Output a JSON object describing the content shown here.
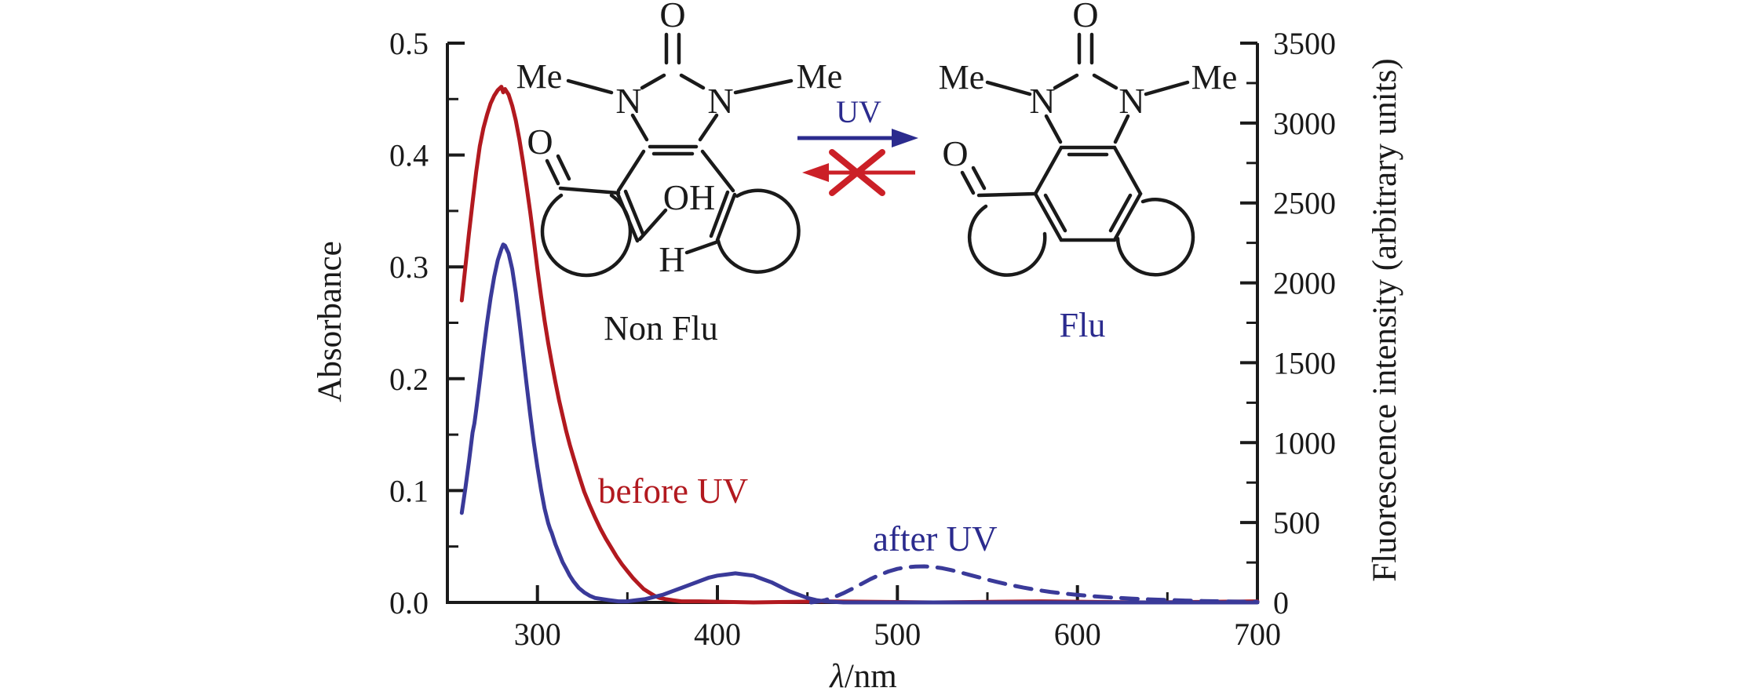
{
  "figure": {
    "colors": {
      "red": "#b2191f",
      "blue": "#3a3a99",
      "navy": "#2b2b8e",
      "arrow_red": "#cb2027",
      "ink": "#1a1a1a",
      "background": "#ffffff"
    },
    "axes": {
      "x": {
        "label_lambda": "λ",
        "label_unit": "/nm",
        "min": 250,
        "max": 700,
        "major_ticks": [
          300,
          400,
          500,
          600,
          700
        ],
        "tick_labels": [
          "300",
          "400",
          "500",
          "600",
          "700"
        ],
        "minor_ticks": [
          350,
          450,
          550,
          650
        ]
      },
      "y_left": {
        "label": "Absorbance",
        "min": 0,
        "max": 0.5,
        "major_ticks": [
          0,
          0.1,
          0.2,
          0.3,
          0.4,
          0.5
        ],
        "tick_labels": [
          "0.0",
          "0.1",
          "0.2",
          "0.3",
          "0.4",
          "0.5"
        ],
        "minor_ticks": [
          0.05,
          0.15,
          0.25,
          0.35,
          0.45
        ]
      },
      "y_right": {
        "label": "Fluorescence intensity (arbitrary units)",
        "min": 0,
        "max": 3500,
        "major_ticks": [
          0,
          500,
          1000,
          1500,
          2000,
          2500,
          3000,
          3500
        ],
        "tick_labels": [
          "0",
          "500",
          "1000",
          "1500",
          "2000",
          "2500",
          "3000",
          "3500"
        ],
        "minor_ticks": [
          250,
          750,
          1250,
          1750,
          2250,
          2750,
          3250
        ]
      }
    },
    "curve_labels": {
      "before_uv": "before UV",
      "after_uv": "after UV"
    },
    "scheme": {
      "uv_label": "UV",
      "non_flu": {
        "caption": "Non Flu",
        "o_top": "O",
        "me_left": "Me",
        "n_left": "N",
        "n_right": "N",
        "me_right": "Me",
        "o_ketone": "O",
        "oh": "OH",
        "h": "H"
      },
      "flu": {
        "caption": "Flu",
        "o_top": "O",
        "me_left": "Me",
        "n_left": "N",
        "n_right": "N",
        "me_right": "Me",
        "o_ketone": "O"
      }
    }
  },
  "chart_data": {
    "type": "line",
    "title": "",
    "xlabel": "λ/nm",
    "ylabel_left": "Absorbance",
    "ylabel_right": "Fluorescence intensity (arbitrary units)",
    "x_range": [
      250,
      700
    ],
    "y_left_range": [
      0,
      0.5
    ],
    "y_right_range": [
      0,
      3500
    ],
    "grid": false,
    "legend": "inline text annotations",
    "series": [
      {
        "name": "before UV",
        "quantity": "absorbance",
        "axis": "left",
        "color": "#b2191f",
        "style": "solid",
        "points": [
          [
            258,
            0.27
          ],
          [
            260,
            0.3
          ],
          [
            262,
            0.33
          ],
          [
            264,
            0.358
          ],
          [
            266,
            0.385
          ],
          [
            268,
            0.408
          ],
          [
            270,
            0.424
          ],
          [
            272,
            0.436
          ],
          [
            274,
            0.446
          ],
          [
            276,
            0.453
          ],
          [
            278,
            0.458
          ],
          [
            280,
            0.461
          ],
          [
            281,
            0.456
          ],
          [
            282,
            0.459
          ],
          [
            284,
            0.454
          ],
          [
            286,
            0.444
          ],
          [
            288,
            0.431
          ],
          [
            290,
            0.414
          ],
          [
            292,
            0.394
          ],
          [
            294,
            0.372
          ],
          [
            296,
            0.349
          ],
          [
            298,
            0.324
          ],
          [
            300,
            0.298
          ],
          [
            302,
            0.274
          ],
          [
            304,
            0.252
          ],
          [
            306,
            0.232
          ],
          [
            308,
            0.214
          ],
          [
            310,
            0.197
          ],
          [
            312,
            0.181
          ],
          [
            314,
            0.167
          ],
          [
            316,
            0.153
          ],
          [
            318,
            0.141
          ],
          [
            320,
            0.13
          ],
          [
            323,
            0.114
          ],
          [
            326,
            0.099
          ],
          [
            329,
            0.087
          ],
          [
            332,
            0.076
          ],
          [
            335,
            0.066
          ],
          [
            338,
            0.057
          ],
          [
            341,
            0.049
          ],
          [
            344,
            0.041
          ],
          [
            347,
            0.034
          ],
          [
            350,
            0.028
          ],
          [
            353,
            0.022
          ],
          [
            356,
            0.017
          ],
          [
            359,
            0.012
          ],
          [
            362,
            0.009
          ],
          [
            365,
            0.006
          ],
          [
            368,
            0.004
          ],
          [
            371,
            0.003
          ],
          [
            375,
            0.002
          ],
          [
            380,
            0.001
          ],
          [
            390,
            0.001
          ],
          [
            420,
            0.0
          ],
          [
            460,
            0.001
          ],
          [
            520,
            0.0
          ],
          [
            580,
            0.001
          ],
          [
            640,
            0.0
          ],
          [
            700,
            0.001
          ]
        ]
      },
      {
        "name": "after UV",
        "quantity": "absorbance",
        "axis": "left",
        "color": "#3a3a99",
        "style": "solid",
        "points": [
          [
            258,
            0.08
          ],
          [
            260,
            0.102
          ],
          [
            262,
            0.126
          ],
          [
            264,
            0.152
          ],
          [
            265,
            0.16
          ],
          [
            266,
            0.172
          ],
          [
            268,
            0.198
          ],
          [
            270,
            0.225
          ],
          [
            272,
            0.25
          ],
          [
            274,
            0.272
          ],
          [
            276,
            0.291
          ],
          [
            278,
            0.306
          ],
          [
            280,
            0.316
          ],
          [
            281,
            0.32
          ],
          [
            282,
            0.319
          ],
          [
            284,
            0.312
          ],
          [
            286,
            0.298
          ],
          [
            288,
            0.277
          ],
          [
            290,
            0.251
          ],
          [
            292,
            0.223
          ],
          [
            294,
            0.195
          ],
          [
            296,
            0.168
          ],
          [
            298,
            0.143
          ],
          [
            300,
            0.121
          ],
          [
            302,
            0.101
          ],
          [
            304,
            0.084
          ],
          [
            306,
            0.071
          ],
          [
            307,
            0.066
          ],
          [
            308,
            0.062
          ],
          [
            310,
            0.052
          ],
          [
            312,
            0.044
          ],
          [
            314,
            0.036
          ],
          [
            316,
            0.03
          ],
          [
            318,
            0.024
          ],
          [
            320,
            0.019
          ],
          [
            323,
            0.013
          ],
          [
            326,
            0.009
          ],
          [
            329,
            0.006
          ],
          [
            332,
            0.004
          ],
          [
            336,
            0.003
          ],
          [
            340,
            0.002
          ],
          [
            345,
            0.001
          ],
          [
            350,
            0.001
          ],
          [
            355,
            0.002
          ],
          [
            360,
            0.003
          ],
          [
            365,
            0.005
          ],
          [
            370,
            0.007
          ],
          [
            375,
            0.01
          ],
          [
            380,
            0.013
          ],
          [
            385,
            0.016
          ],
          [
            390,
            0.019
          ],
          [
            395,
            0.022
          ],
          [
            400,
            0.024
          ],
          [
            405,
            0.025
          ],
          [
            410,
            0.026
          ],
          [
            415,
            0.025
          ],
          [
            420,
            0.024
          ],
          [
            425,
            0.021
          ],
          [
            430,
            0.018
          ],
          [
            435,
            0.014
          ],
          [
            440,
            0.01
          ],
          [
            445,
            0.007
          ],
          [
            450,
            0.004
          ],
          [
            455,
            0.002
          ],
          [
            460,
            0.001
          ],
          [
            470,
            0.0
          ],
          [
            500,
            0.0
          ],
          [
            560,
            0.0
          ],
          [
            620,
            0.0
          ],
          [
            700,
            0.0
          ]
        ]
      },
      {
        "name": "after UV (fluorescence)",
        "quantity": "fluorescence intensity",
        "axis": "right",
        "color": "#3a3a99",
        "style": "dashed",
        "points": [
          [
            452,
            0
          ],
          [
            456,
            6
          ],
          [
            460,
            15
          ],
          [
            465,
            34
          ],
          [
            470,
            58
          ],
          [
            475,
            86
          ],
          [
            480,
            116
          ],
          [
            485,
            146
          ],
          [
            490,
            172
          ],
          [
            495,
            194
          ],
          [
            500,
            210
          ],
          [
            505,
            220
          ],
          [
            510,
            225
          ],
          [
            515,
            226
          ],
          [
            520,
            222
          ],
          [
            525,
            214
          ],
          [
            530,
            202
          ],
          [
            535,
            188
          ],
          [
            540,
            173
          ],
          [
            545,
            158
          ],
          [
            550,
            143
          ],
          [
            555,
            129
          ],
          [
            560,
            116
          ],
          [
            565,
            104
          ],
          [
            570,
            93
          ],
          [
            575,
            83
          ],
          [
            580,
            74
          ],
          [
            585,
            66
          ],
          [
            590,
            59
          ],
          [
            595,
            53
          ],
          [
            600,
            47
          ],
          [
            610,
            38
          ],
          [
            620,
            30
          ],
          [
            630,
            24
          ],
          [
            640,
            19
          ],
          [
            650,
            15
          ],
          [
            660,
            12
          ],
          [
            670,
            9
          ],
          [
            680,
            7
          ],
          [
            690,
            5
          ],
          [
            700,
            4
          ]
        ]
      }
    ]
  }
}
